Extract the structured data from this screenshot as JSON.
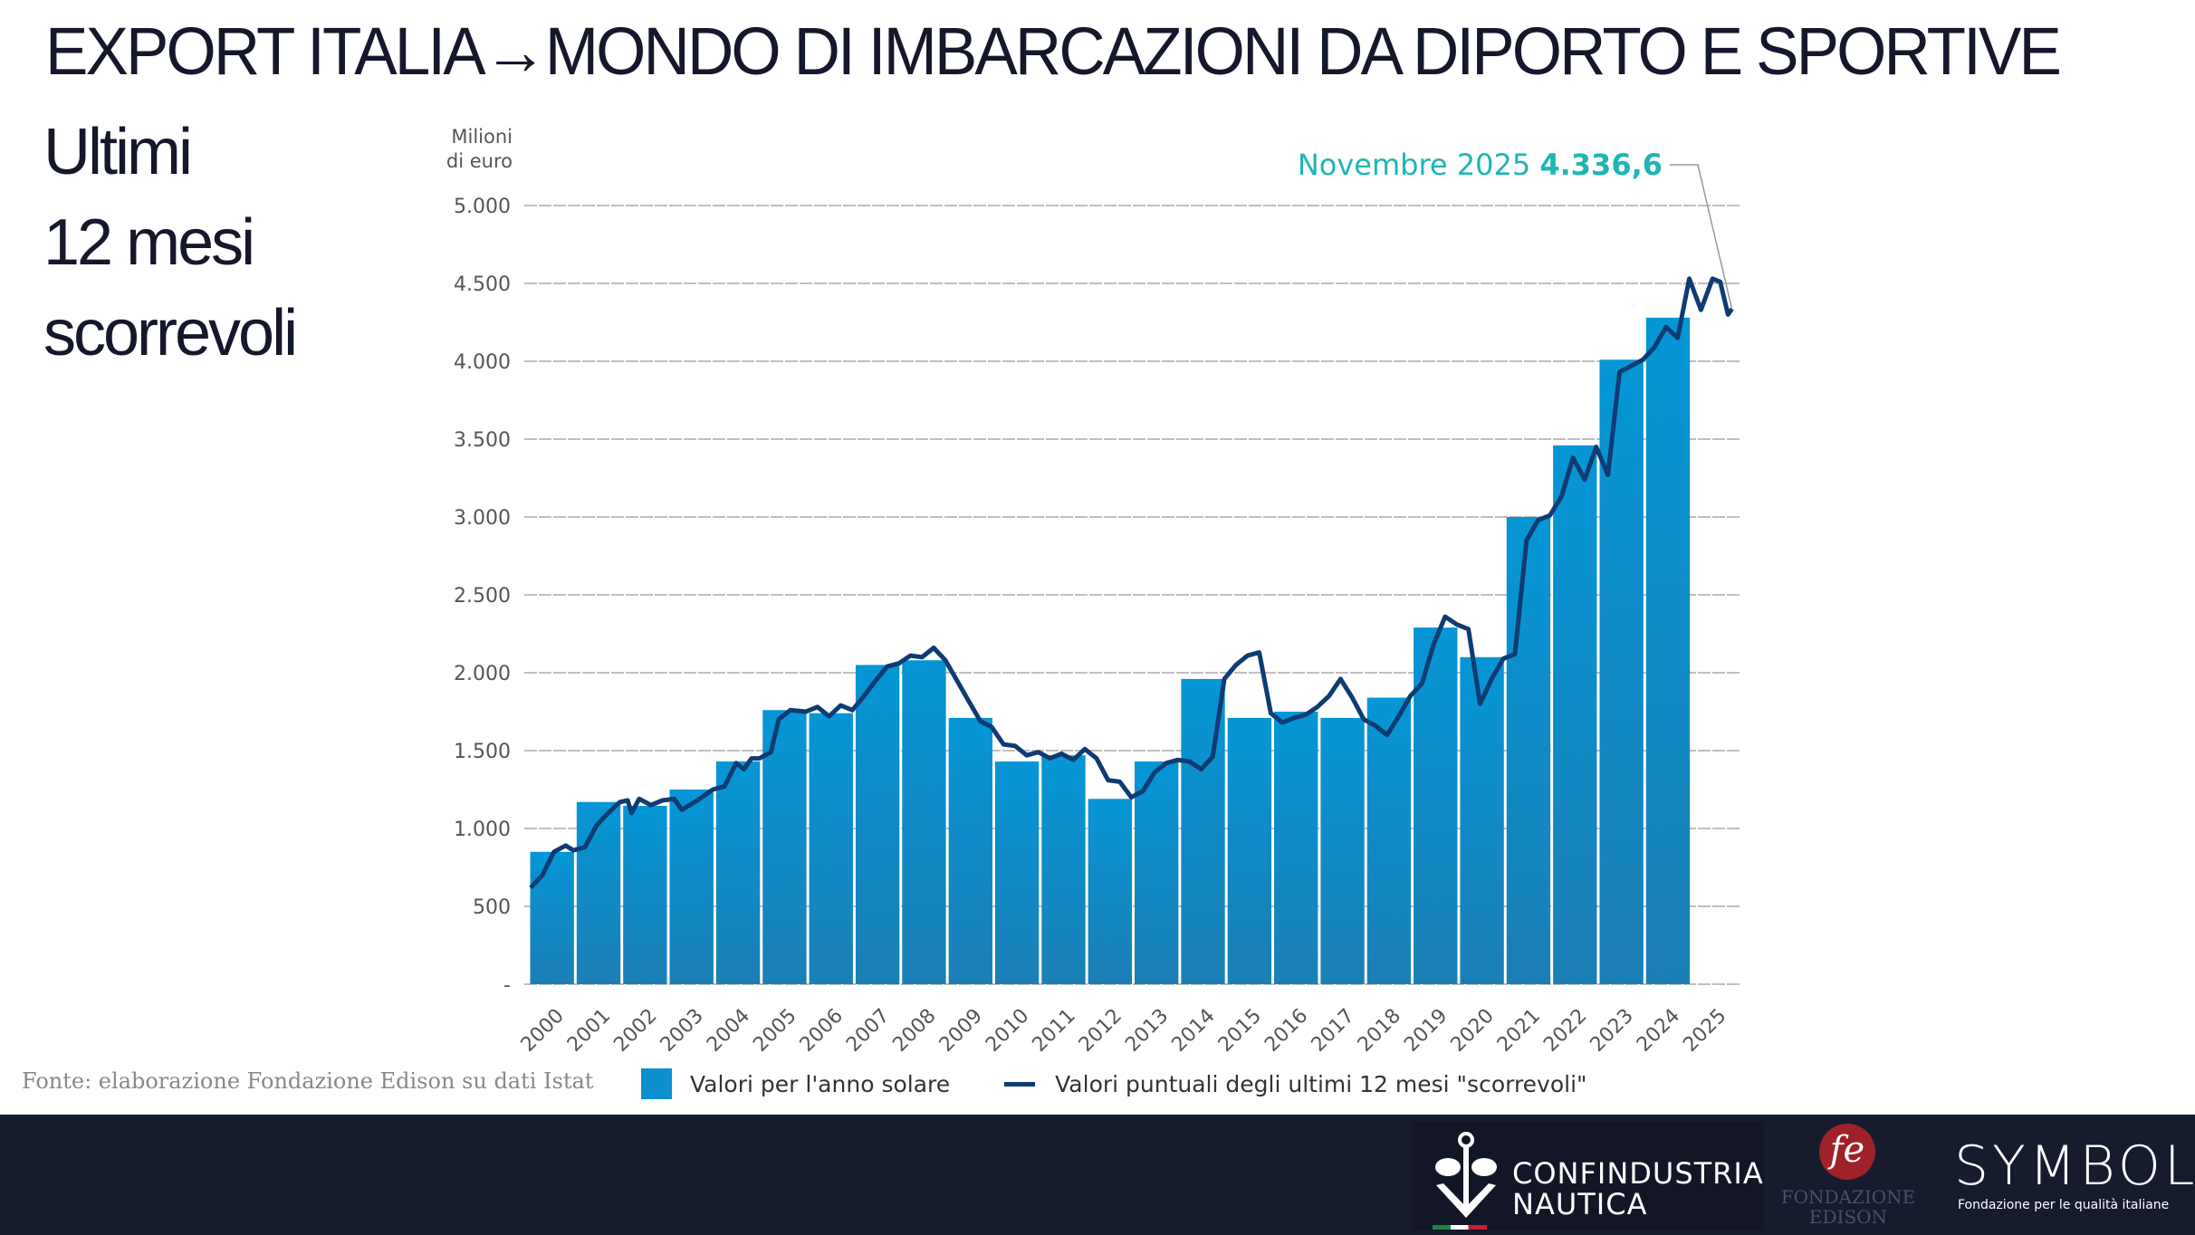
{
  "header": {
    "title": "EXPORT ITALIA→MONDO DI IMBARCAZIONI DA DIPORTO E SPORTIVE",
    "subtitle_lines": [
      "Ultimi",
      "12 mesi",
      "scorrevoli"
    ]
  },
  "chart_data": {
    "type": "bar+line",
    "ylabel": "Milioni di euro",
    "ylabel_lines": [
      "Milioni",
      "di euro"
    ],
    "ylim": [
      0,
      5000
    ],
    "yticks": [
      0,
      500,
      1000,
      1500,
      2000,
      2500,
      3000,
      3500,
      4000,
      4500,
      5000
    ],
    "ytick_labels": [
      "-",
      "500",
      "1.000",
      "1.500",
      "2.000",
      "2.500",
      "3.000",
      "3.500",
      "4.000",
      "4.500",
      "5.000"
    ],
    "categories": [
      "2000",
      "2001",
      "2002",
      "2003",
      "2004",
      "2005",
      "2006",
      "2007",
      "2008",
      "2009",
      "2010",
      "2011",
      "2012",
      "2013",
      "2014",
      "2015",
      "2016",
      "2017",
      "2018",
      "2019",
      "2020",
      "2021",
      "2022",
      "2023",
      "2024",
      "2025"
    ],
    "grid": true,
    "legend_placement": "bottom",
    "colors": {
      "bars": "#0b8fd0",
      "line": "#0f3b73",
      "annotation": "#1fb5b5"
    },
    "series": [
      {
        "name": "Valori per l'anno solare",
        "type": "bar",
        "values": [
          850,
          1170,
          1145,
          1250,
          1430,
          1760,
          1740,
          2050,
          2080,
          1710,
          1430,
          1470,
          1190,
          1430,
          1960,
          1710,
          1750,
          1710,
          1840,
          2290,
          2100,
          3000,
          3460,
          4010,
          4280,
          null
        ]
      },
      {
        "name": "Valori puntuali degli ultimi 12 mesi \"scorrevoli\"",
        "type": "line",
        "points": [
          [
            "2000-01",
            620
          ],
          [
            "2000-04",
            700
          ],
          [
            "2000-07",
            850
          ],
          [
            "2000-10",
            890
          ],
          [
            "2000-12",
            860
          ],
          [
            "2001-03",
            880
          ],
          [
            "2001-06",
            1020
          ],
          [
            "2001-09",
            1100
          ],
          [
            "2001-12",
            1170
          ],
          [
            "2002-02",
            1180
          ],
          [
            "2002-03",
            1100
          ],
          [
            "2002-05",
            1190
          ],
          [
            "2002-08",
            1150
          ],
          [
            "2002-11",
            1180
          ],
          [
            "2003-02",
            1190
          ],
          [
            "2003-04",
            1120
          ],
          [
            "2003-08",
            1180
          ],
          [
            "2003-12",
            1250
          ],
          [
            "2004-03",
            1270
          ],
          [
            "2004-06",
            1420
          ],
          [
            "2004-08",
            1380
          ],
          [
            "2004-10",
            1450
          ],
          [
            "2004-12",
            1450
          ],
          [
            "2005-03",
            1490
          ],
          [
            "2005-05",
            1700
          ],
          [
            "2005-08",
            1760
          ],
          [
            "2005-12",
            1750
          ],
          [
            "2006-03",
            1780
          ],
          [
            "2006-06",
            1720
          ],
          [
            "2006-09",
            1790
          ],
          [
            "2006-12",
            1760
          ],
          [
            "2007-03",
            1850
          ],
          [
            "2007-06",
            1950
          ],
          [
            "2007-09",
            2040
          ],
          [
            "2007-12",
            2060
          ],
          [
            "2008-03",
            2110
          ],
          [
            "2008-06",
            2100
          ],
          [
            "2008-09",
            2160
          ],
          [
            "2008-12",
            2080
          ],
          [
            "2009-03",
            1950
          ],
          [
            "2009-06",
            1820
          ],
          [
            "2009-09",
            1690
          ],
          [
            "2009-12",
            1650
          ],
          [
            "2010-03",
            1540
          ],
          [
            "2010-06",
            1530
          ],
          [
            "2010-09",
            1470
          ],
          [
            "2010-12",
            1490
          ],
          [
            "2011-03",
            1450
          ],
          [
            "2011-06",
            1480
          ],
          [
            "2011-09",
            1440
          ],
          [
            "2011-12",
            1510
          ],
          [
            "2012-03",
            1450
          ],
          [
            "2012-06",
            1310
          ],
          [
            "2012-09",
            1300
          ],
          [
            "2012-12",
            1200
          ],
          [
            "2013-03",
            1240
          ],
          [
            "2013-06",
            1360
          ],
          [
            "2013-09",
            1420
          ],
          [
            "2013-12",
            1440
          ],
          [
            "2014-03",
            1430
          ],
          [
            "2014-06",
            1380
          ],
          [
            "2014-09",
            1460
          ],
          [
            "2014-12",
            1960
          ],
          [
            "2015-03",
            2050
          ],
          [
            "2015-06",
            2110
          ],
          [
            "2015-09",
            2130
          ],
          [
            "2015-12",
            1740
          ],
          [
            "2016-03",
            1680
          ],
          [
            "2016-06",
            1710
          ],
          [
            "2016-09",
            1730
          ],
          [
            "2016-12",
            1780
          ],
          [
            "2017-03",
            1850
          ],
          [
            "2017-06",
            1960
          ],
          [
            "2017-09",
            1840
          ],
          [
            "2017-12",
            1700
          ],
          [
            "2018-03",
            1660
          ],
          [
            "2018-06",
            1600
          ],
          [
            "2018-09",
            1720
          ],
          [
            "2018-12",
            1850
          ],
          [
            "2019-03",
            1930
          ],
          [
            "2019-06",
            2180
          ],
          [
            "2019-09",
            2360
          ],
          [
            "2019-12",
            2310
          ],
          [
            "2020-03",
            2280
          ],
          [
            "2020-06",
            1800
          ],
          [
            "2020-09",
            1960
          ],
          [
            "2020-12",
            2090
          ],
          [
            "2021-03",
            2120
          ],
          [
            "2021-06",
            2850
          ],
          [
            "2021-09",
            2980
          ],
          [
            "2021-12",
            3010
          ],
          [
            "2022-03",
            3130
          ],
          [
            "2022-06",
            3380
          ],
          [
            "2022-09",
            3240
          ],
          [
            "2022-12",
            3450
          ],
          [
            "2023-03",
            3270
          ],
          [
            "2023-06",
            3930
          ],
          [
            "2023-09",
            3970
          ],
          [
            "2023-12",
            4010
          ],
          [
            "2024-03",
            4090
          ],
          [
            "2024-06",
            4220
          ],
          [
            "2024-09",
            4150
          ],
          [
            "2024-12",
            4530
          ],
          [
            "2025-03",
            4330
          ],
          [
            "2025-06",
            4530
          ],
          [
            "2025-08",
            4510
          ],
          [
            "2025-10",
            4300
          ],
          [
            "2025-11",
            4336.6
          ]
        ]
      }
    ],
    "annotation": {
      "label": "Novembre 2025",
      "value": "4.336,6"
    }
  },
  "legend": {
    "bar_label": "Valori per l'anno solare",
    "line_label": "Valori puntuali degli ultimi 12 mesi \"scorrevoli\""
  },
  "source": "Fonte: elaborazione Fondazione Edison su dati Istat",
  "footer": {
    "logo1": "CONFINDUSTRIA NAUTICA",
    "logo1_lines": [
      "CONFINDUSTRIA",
      "NAUTICA"
    ],
    "logo2_lines": [
      "FONDAZIONE",
      "EDISON"
    ],
    "logo3": "SYMBOLA",
    "logo3_sub": "Fondazione per le qualità italiane"
  }
}
